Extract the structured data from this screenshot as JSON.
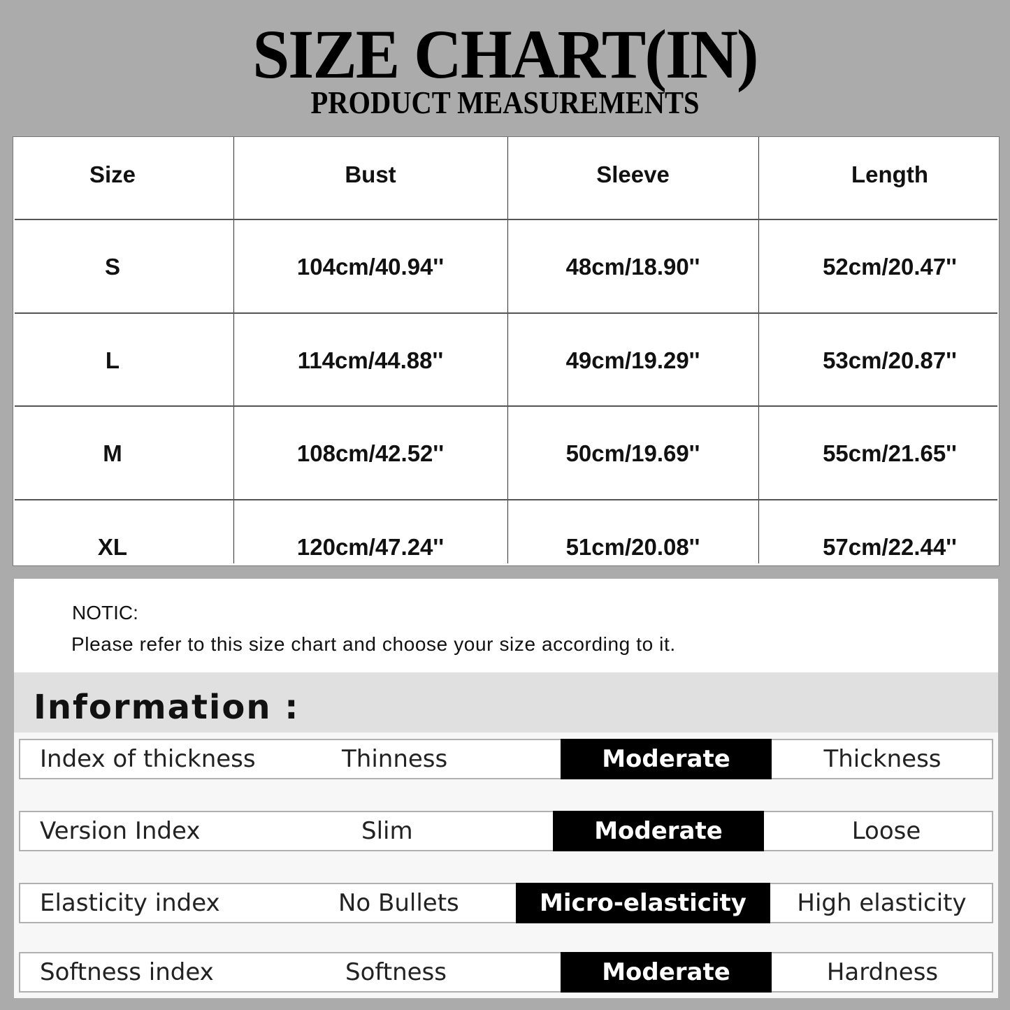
{
  "header": {
    "title": "SIZE CHART(IN)",
    "subtitle": "PRODUCT MEASUREMENTS"
  },
  "size_table": {
    "columns": [
      "Size",
      "Bust",
      "Sleeve",
      "Length"
    ],
    "rows": [
      [
        "S",
        "104cm/40.94''",
        "48cm/18.90''",
        "52cm/20.47''"
      ],
      [
        "L",
        "114cm/44.88''",
        "49cm/19.29''",
        "53cm/20.87''"
      ],
      [
        "M",
        "108cm/42.52''",
        "50cm/19.69''",
        "55cm/21.65''"
      ],
      [
        "XL",
        "120cm/47.24''",
        "51cm/20.08''",
        "57cm/22.44''"
      ]
    ]
  },
  "notice": {
    "heading": "NOTIC:",
    "text": "Please refer to this size chart and choose your size according to it."
  },
  "information": {
    "heading": "Information :",
    "rows": [
      {
        "label": "Index of thickness",
        "options": [
          "Thinness",
          "Moderate",
          "Thickness"
        ],
        "selected": "Moderate"
      },
      {
        "label": "Version Index",
        "options": [
          "Slim",
          "Moderate",
          "Loose"
        ],
        "selected": "Moderate"
      },
      {
        "label": "Elasticity index",
        "options": [
          "No Bullets",
          "Micro-elasticity",
          "High elasticity"
        ],
        "selected": "Micro-elasticity"
      },
      {
        "label": "Softness index",
        "options": [
          "Softness",
          "Moderate",
          "Hardness"
        ],
        "selected": "Moderate"
      }
    ]
  },
  "colors": {
    "background": "#ababab",
    "selected": "#000000",
    "panel": "#ffffff"
  }
}
